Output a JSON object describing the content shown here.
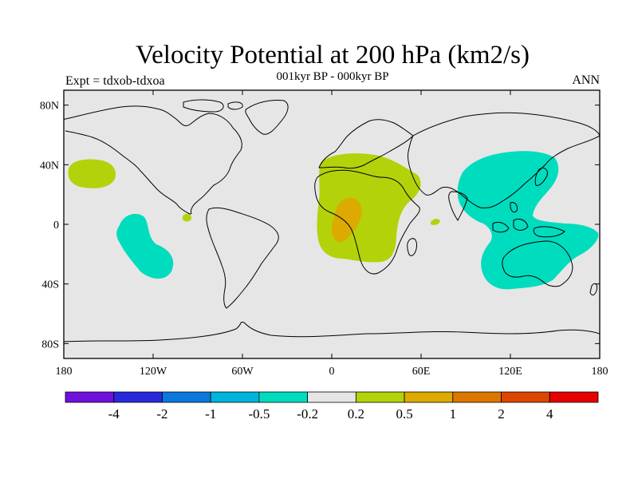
{
  "header": {
    "title": "Velocity Potential at 200 hPa (km2/s)",
    "subtitle": "001kyr BP - 000kyr BP",
    "left_label": "Expt = tdxob-tdxoa",
    "right_label": "ANN"
  },
  "map": {
    "projection": "cylindrical equidistant",
    "lon_range": [
      -180,
      180
    ],
    "lat_range": [
      -90,
      90
    ],
    "background_color": "#e6e6e6",
    "lon_ticks": [
      "180",
      "120W",
      "60W",
      "0",
      "60E",
      "120E",
      "180"
    ],
    "lat_ticks": [
      "80N",
      "40N",
      "0",
      "40S",
      "80S"
    ],
    "contour_regions": [
      {
        "label": "North Pacific positive lobe",
        "level": "0.2 to 0.5",
        "color": "#b4d20a"
      },
      {
        "label": "Central Pacific small positive",
        "level": "0.2 to 0.5",
        "color": "#b4d20a"
      },
      {
        "label": "South Pacific negative lobe",
        "level": "-0.5 to -0.2",
        "color": "#00dcbe"
      },
      {
        "label": "Africa positive region",
        "level": "0.2 to 0.5",
        "color": "#b4d20a"
      },
      {
        "label": "Central Africa core",
        "level": "0.5 to 1",
        "color": "#dcaa00"
      },
      {
        "label": "Arabian Sea small positive",
        "level": "0.2 to 0.5",
        "color": "#b4d20a"
      },
      {
        "label": "Asia - Maritime Continent - Australia negative region",
        "level": "-0.5 to -0.2",
        "color": "#00dcbe"
      }
    ]
  },
  "colorbar": {
    "colors": [
      "#7010dc",
      "#2828dc",
      "#0a78dc",
      "#00b4dc",
      "#00dcbe",
      "#e6e6e6",
      "#b4d20a",
      "#dcaa00",
      "#dc7800",
      "#dc4600",
      "#e60000"
    ],
    "labels": [
      "-4",
      "-2",
      "-1",
      "-0.5",
      "-0.2",
      "0.2",
      "0.5",
      "1",
      "2",
      "4"
    ]
  }
}
